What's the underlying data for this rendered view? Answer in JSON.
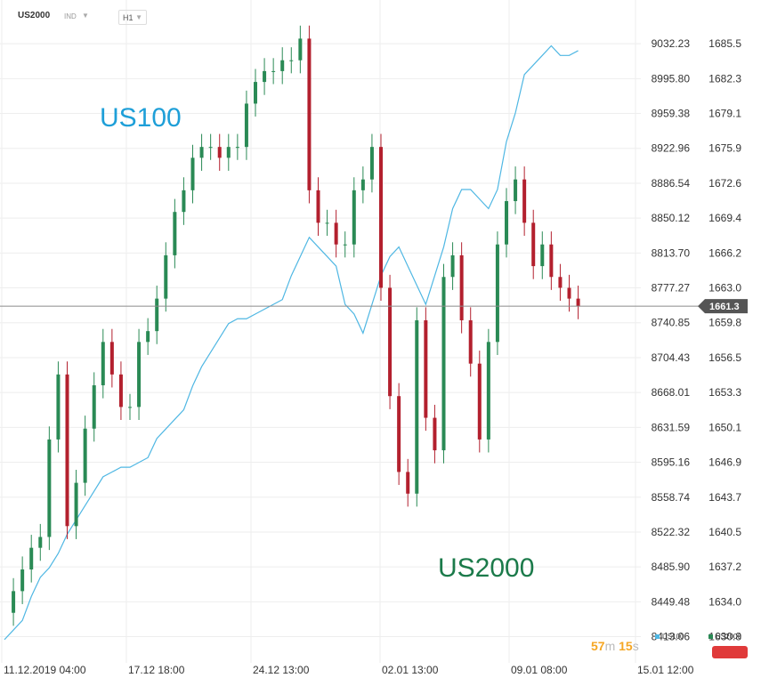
{
  "header": {
    "symbol": "US2000",
    "symbol_type": "IND",
    "timeframe": "H1"
  },
  "overlay_labels": {
    "us100": "US100",
    "us2000": "US2000"
  },
  "legend": {
    "us100": "US100",
    "us2000": "US2000"
  },
  "timer": {
    "minutes": "57",
    "m": "m",
    "seconds": "15",
    "s": "s"
  },
  "colors": {
    "us100": "#4fb7e3",
    "us2000_up": "#2a8a55",
    "us2000_down": "#b3202e",
    "last_line": "#8a8a8a",
    "badge": "#555555",
    "button": "#e03a3a"
  },
  "chart_data": {
    "type": "line",
    "current_value": "1661.3",
    "x_ticks": [
      "11.12.2019  04:00",
      "17.12  18:00",
      "24.12  13:00",
      "02.01  13:00",
      "09.01  08:00",
      "15.01  12:00"
    ],
    "y_left_ticks": [
      "9032.23",
      "8995.80",
      "8959.38",
      "8922.96",
      "8886.54",
      "8850.12",
      "8813.70",
      "8777.27",
      "8740.85",
      "8704.43",
      "8668.01",
      "8631.59",
      "8595.16",
      "8558.74",
      "8522.32",
      "8485.90",
      "8449.48",
      "8413.06"
    ],
    "y_right_ticks": [
      "1685.5",
      "1682.3",
      "1679.1",
      "1675.9",
      "1672.6",
      "1669.4",
      "1666.2",
      "1663.0",
      "1659.8",
      "1656.5",
      "1653.3",
      "1650.1",
      "1646.9",
      "1643.7",
      "1640.5",
      "1637.2",
      "1634.0",
      "1630.8"
    ],
    "y_left_range": [
      8395,
      9050
    ],
    "y_right_range": [
      1629.2,
      1687.1
    ],
    "x_range": [
      0,
      700
    ],
    "series": [
      {
        "name": "US100",
        "axis": "left",
        "x": [
          0,
          10,
          20,
          30,
          40,
          50,
          60,
          70,
          80,
          90,
          100,
          110,
          120,
          130,
          140,
          150,
          160,
          170,
          180,
          190,
          200,
          210,
          220,
          230,
          240,
          250,
          260,
          270,
          280,
          290,
          300,
          310,
          320,
          330,
          340,
          350,
          360,
          370,
          380,
          390,
          400,
          410,
          420,
          430,
          440,
          450,
          460,
          470,
          480,
          490,
          500,
          510,
          520,
          530,
          540,
          550,
          560,
          570,
          580,
          590,
          600,
          610,
          620,
          630,
          640
        ],
        "values": [
          8410,
          8420,
          8430,
          8455,
          8475,
          8485,
          8500,
          8520,
          8535,
          8550,
          8565,
          8580,
          8585,
          8590,
          8590,
          8595,
          8600,
          8620,
          8630,
          8640,
          8650,
          8675,
          8695,
          8710,
          8725,
          8740,
          8745,
          8745,
          8750,
          8755,
          8760,
          8765,
          8790,
          8810,
          8830,
          8820,
          8810,
          8800,
          8760,
          8750,
          8730,
          8760,
          8790,
          8810,
          8820,
          8800,
          8780,
          8760,
          8790,
          8820,
          8860,
          8880,
          8880,
          8870,
          8860,
          8880,
          8930,
          8960,
          9000,
          9010,
          9020,
          9030,
          9020,
          9020,
          9025
        ]
      },
      {
        "name": "US2000",
        "axis": "right",
        "x": [
          0,
          10,
          20,
          30,
          40,
          50,
          60,
          70,
          80,
          90,
          100,
          110,
          120,
          130,
          140,
          150,
          160,
          170,
          180,
          190,
          200,
          210,
          220,
          230,
          240,
          250,
          260,
          270,
          280,
          290,
          300,
          310,
          320,
          330,
          340,
          350,
          360,
          370,
          380,
          390,
          400,
          410,
          420,
          430,
          440,
          450,
          460,
          470,
          480,
          490,
          500,
          510,
          520,
          530,
          540,
          550,
          560,
          570,
          580,
          590,
          600,
          610,
          620,
          630,
          640
        ],
        "values": [
          1633,
          1635,
          1637,
          1639,
          1640,
          1649,
          1655,
          1641,
          1645,
          1650,
          1654,
          1658,
          1655,
          1652,
          1652,
          1658,
          1659,
          1662,
          1666,
          1670,
          1672,
          1675,
          1676,
          1676,
          1675,
          1676,
          1676,
          1680,
          1682,
          1683,
          1683,
          1684,
          1684,
          1686,
          1672,
          1669,
          1669,
          1667,
          1667,
          1672,
          1673,
          1676,
          1663,
          1653,
          1646,
          1644,
          1660,
          1651,
          1648,
          1664,
          1666,
          1660,
          1656,
          1649,
          1658,
          1667,
          1671,
          1673,
          1669,
          1665,
          1667,
          1664,
          1663,
          1662,
          1661.3
        ]
      }
    ]
  }
}
